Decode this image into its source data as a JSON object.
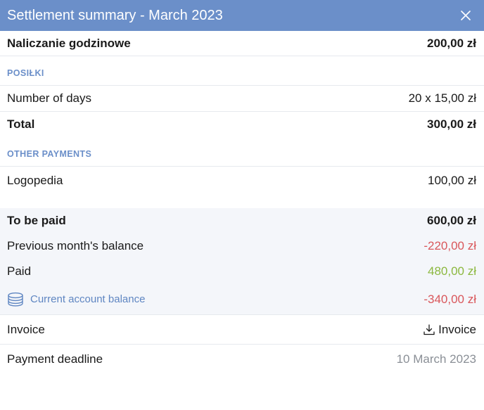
{
  "header": {
    "title": "Settlement summary - March 2023",
    "close_icon": "close-icon"
  },
  "hourly": {
    "label": "Naliczanie godzinowe",
    "value": "200,00 zł"
  },
  "meals": {
    "section_label": "POSIŁKI",
    "days_label": "Number of days",
    "days_value": "20 x 15,00 zł",
    "total_label": "Total",
    "total_value": "300,00 zł"
  },
  "other": {
    "section_label": "OTHER PAYMENTS",
    "item_label": "Logopedia",
    "item_value": "100,00 zł"
  },
  "summary": {
    "to_be_paid_label": "To be paid",
    "to_be_paid_value": "600,00 zł",
    "prev_balance_label": "Previous month's balance",
    "prev_balance_value": "-220,00 zł",
    "paid_label": "Paid",
    "paid_value": "480,00 zł",
    "current_balance_label": "Current account balance",
    "current_balance_value": "-340,00 zł",
    "current_balance_icon": "coins-icon"
  },
  "invoice": {
    "label": "Invoice",
    "button_label": "Invoice",
    "button_icon": "download-icon"
  },
  "deadline": {
    "label": "Payment deadline",
    "value": "10 March 2023"
  },
  "colors": {
    "header_bg": "#6b8fc9",
    "accent": "#5f86c2",
    "negative": "#d9575b",
    "positive": "#8cb83f",
    "muted": "#8a8f96",
    "summary_bg": "#f4f6fa"
  }
}
